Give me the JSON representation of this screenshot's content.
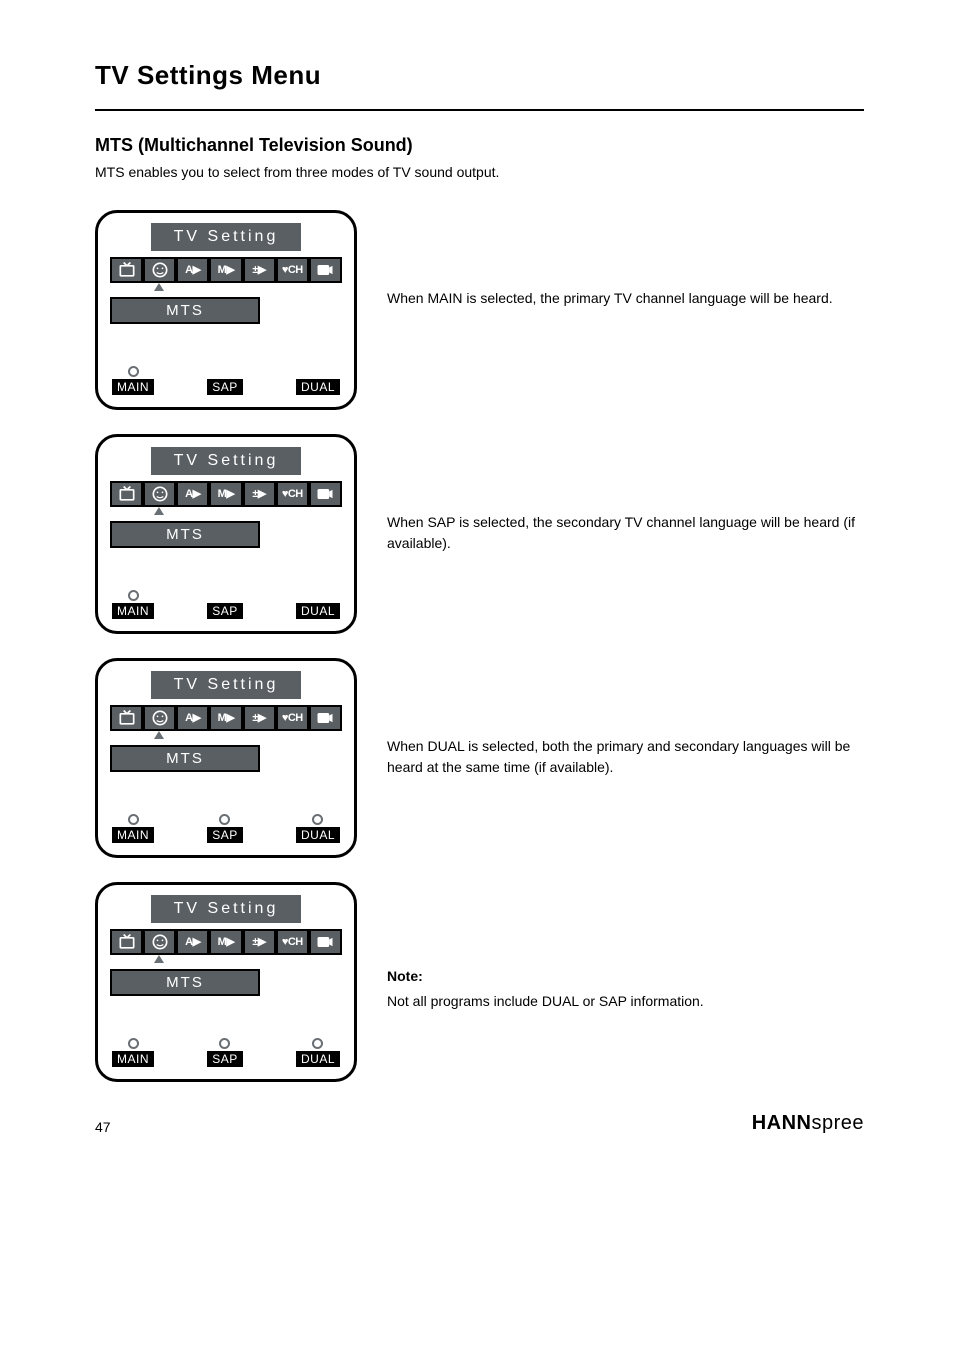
{
  "page": {
    "title": "TV Settings Menu",
    "hr_color": "#000000",
    "subsection": "MTS (Multichannel Television Sound)",
    "description": "MTS enables you to select from three modes of TV sound output.",
    "page_number": "47",
    "brand_bold": "HANN",
    "brand_light": "spree"
  },
  "osd": {
    "title": "TV   Setting",
    "mts_label": "MTS",
    "options": [
      "MAIN",
      "SAP",
      "DUAL"
    ],
    "tabs": [
      "tv-icon",
      "face-icon",
      "A▶",
      "M▶",
      "±▶",
      "♥CH",
      "tool-icon"
    ],
    "colors": {
      "panel_bg": "#5a5f63",
      "border": "#000000",
      "text": "#ffffff",
      "option_bg": "#000000",
      "circle_border": "#6a6f73"
    }
  },
  "panels": [
    {
      "circles": [
        true,
        false,
        false
      ],
      "explain": "When MAIN is selected, the primary TV channel language will be heard."
    },
    {
      "circles": [
        true,
        false,
        false
      ],
      "explain": "When SAP is selected, the secondary TV channel language will be heard (if available)."
    },
    {
      "circles": [
        true,
        true,
        true
      ],
      "explain": "When DUAL is selected, both the primary and secondary languages will be heard at the same time (if available)."
    },
    {
      "circles": [
        true,
        true,
        true
      ],
      "explain": ""
    }
  ],
  "note": {
    "title": "Note:",
    "body": "Not all programs include DUAL or SAP information."
  }
}
